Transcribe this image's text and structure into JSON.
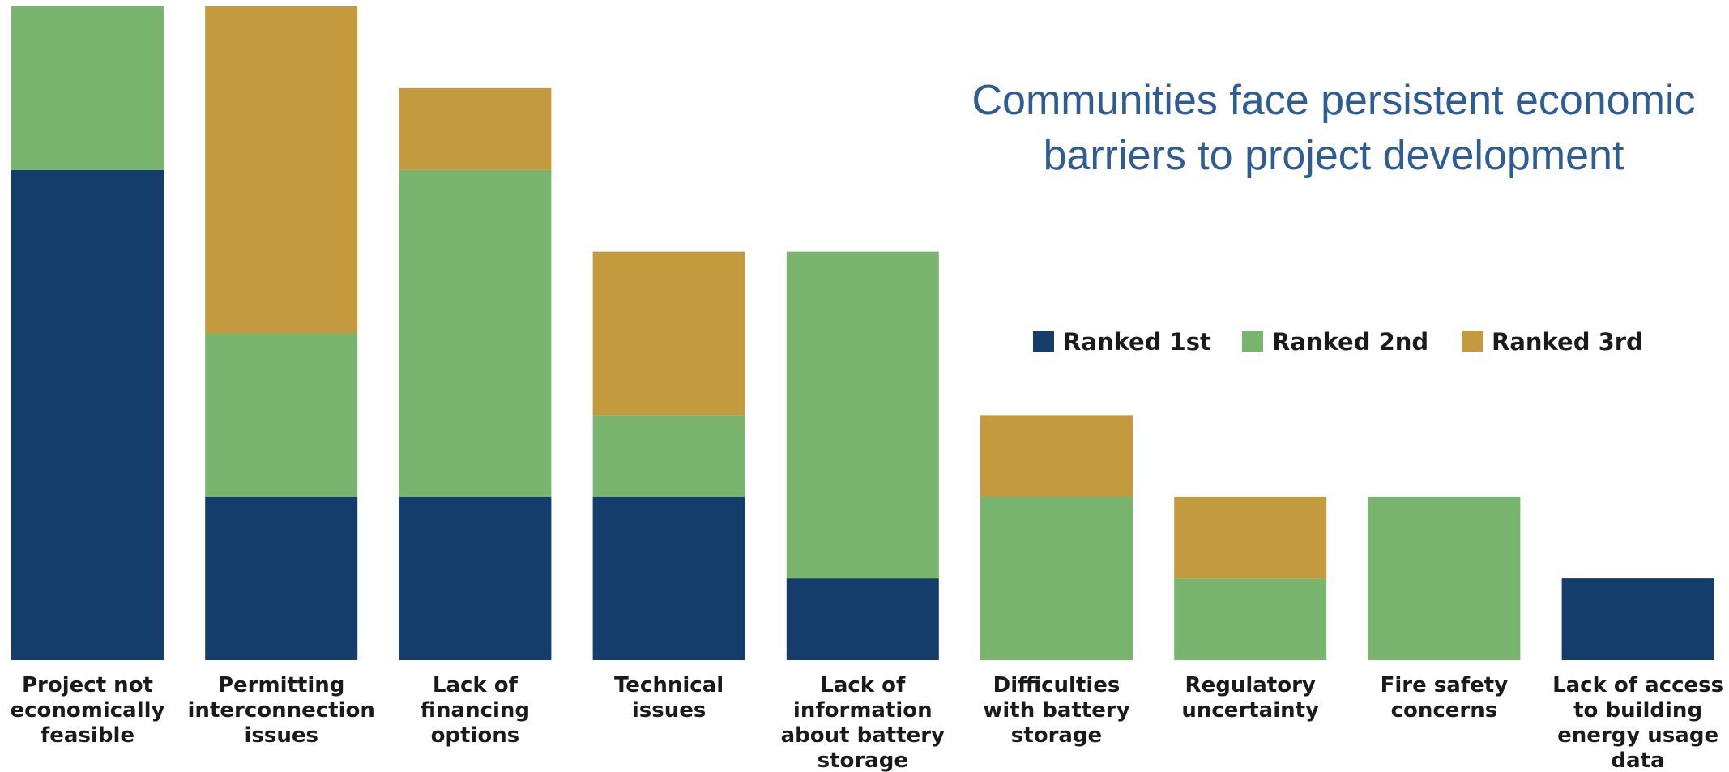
{
  "chart_data": {
    "type": "bar",
    "stacked": true,
    "title": [
      "Communities face persistent economic",
      "barriers to project development"
    ],
    "categories": [
      [
        "Project not",
        "economically",
        "feasible"
      ],
      [
        "Permitting",
        "interconnection",
        "issues"
      ],
      [
        "Lack of",
        "financing",
        "options"
      ],
      [
        "Technical",
        "issues"
      ],
      [
        "Lack of",
        "information",
        "about battery",
        "storage"
      ],
      [
        "Difficulties",
        "with battery",
        "storage"
      ],
      [
        "Regulatory",
        "uncertainty"
      ],
      [
        "Fire safety",
        "concerns"
      ],
      [
        "Lack of access",
        "to building",
        "energy usage",
        "data"
      ]
    ],
    "series": [
      {
        "name": "Ranked 1st",
        "color": "#143D6B",
        "values": [
          6,
          2,
          2,
          2,
          1,
          0,
          0,
          0,
          1
        ]
      },
      {
        "name": "Ranked 2nd",
        "color": "#7AB56F",
        "values": [
          2,
          2,
          4,
          1,
          4,
          2,
          1,
          2,
          0
        ]
      },
      {
        "name": "Ranked 3rd",
        "color": "#C49A3E",
        "values": [
          0,
          4,
          1,
          2,
          0,
          1,
          1,
          0,
          0
        ]
      }
    ],
    "ylim": [
      0,
      8
    ],
    "legend": "right",
    "grid": false
  }
}
